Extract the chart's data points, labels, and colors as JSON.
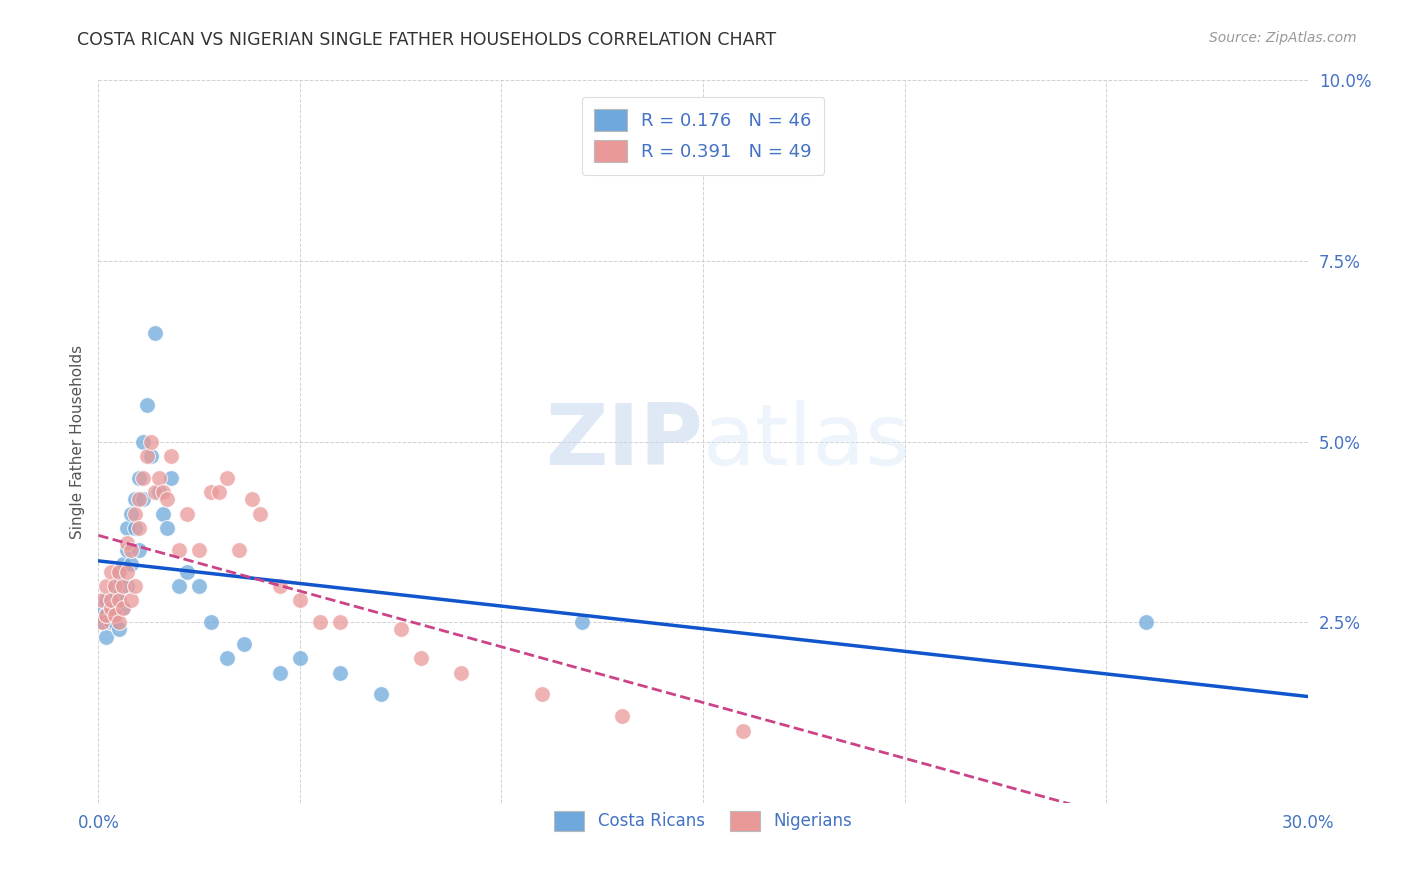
{
  "title": "COSTA RICAN VS NIGERIAN SINGLE FATHER HOUSEHOLDS CORRELATION CHART",
  "source": "Source: ZipAtlas.com",
  "ylabel": "Single Father Households",
  "xlim": [
    0.0,
    0.3
  ],
  "ylim": [
    0.0,
    0.1
  ],
  "xticks": [
    0.0,
    0.05,
    0.1,
    0.15,
    0.2,
    0.25,
    0.3
  ],
  "yticks": [
    0.0,
    0.025,
    0.05,
    0.075,
    0.1
  ],
  "ytick_labels": [
    "",
    "2.5%",
    "5.0%",
    "7.5%",
    "10.0%"
  ],
  "xtick_labels": [
    "0.0%",
    "",
    "",
    "",
    "",
    "",
    "30.0%"
  ],
  "blue_color": "#6fa8dc",
  "pink_color": "#ea9999",
  "trend_blue": "#1155cc",
  "trend_pink": "#cc4488",
  "legend_r_blue": "0.176",
  "legend_n_blue": "46",
  "legend_r_pink": "0.391",
  "legend_n_pink": "49",
  "watermark": "ZIPatlas",
  "costa_rican_x": [
    0.001,
    0.001,
    0.002,
    0.002,
    0.002,
    0.003,
    0.003,
    0.003,
    0.004,
    0.004,
    0.004,
    0.005,
    0.005,
    0.005,
    0.006,
    0.006,
    0.007,
    0.007,
    0.007,
    0.008,
    0.008,
    0.009,
    0.009,
    0.01,
    0.01,
    0.011,
    0.011,
    0.012,
    0.013,
    0.014,
    0.015,
    0.016,
    0.017,
    0.018,
    0.02,
    0.022,
    0.025,
    0.028,
    0.032,
    0.036,
    0.045,
    0.05,
    0.06,
    0.07,
    0.26,
    0.12
  ],
  "costa_rican_y": [
    0.027,
    0.025,
    0.026,
    0.028,
    0.023,
    0.026,
    0.028,
    0.025,
    0.027,
    0.025,
    0.03,
    0.024,
    0.028,
    0.032,
    0.027,
    0.033,
    0.038,
    0.03,
    0.035,
    0.04,
    0.033,
    0.042,
    0.038,
    0.035,
    0.045,
    0.05,
    0.042,
    0.055,
    0.048,
    0.065,
    0.043,
    0.04,
    0.038,
    0.045,
    0.03,
    0.032,
    0.03,
    0.025,
    0.02,
    0.022,
    0.018,
    0.02,
    0.018,
    0.015,
    0.025,
    0.025
  ],
  "nigerian_x": [
    0.001,
    0.001,
    0.002,
    0.002,
    0.003,
    0.003,
    0.003,
    0.004,
    0.004,
    0.005,
    0.005,
    0.005,
    0.006,
    0.006,
    0.007,
    0.007,
    0.008,
    0.008,
    0.009,
    0.009,
    0.01,
    0.01,
    0.011,
    0.012,
    0.013,
    0.014,
    0.015,
    0.016,
    0.017,
    0.018,
    0.02,
    0.022,
    0.025,
    0.028,
    0.03,
    0.032,
    0.035,
    0.038,
    0.04,
    0.045,
    0.05,
    0.055,
    0.06,
    0.075,
    0.08,
    0.09,
    0.11,
    0.13,
    0.16
  ],
  "nigerian_y": [
    0.025,
    0.028,
    0.026,
    0.03,
    0.027,
    0.028,
    0.032,
    0.026,
    0.03,
    0.025,
    0.028,
    0.032,
    0.027,
    0.03,
    0.032,
    0.036,
    0.028,
    0.035,
    0.03,
    0.04,
    0.042,
    0.038,
    0.045,
    0.048,
    0.05,
    0.043,
    0.045,
    0.043,
    0.042,
    0.048,
    0.035,
    0.04,
    0.035,
    0.043,
    0.043,
    0.045,
    0.035,
    0.042,
    0.04,
    0.03,
    0.028,
    0.025,
    0.025,
    0.024,
    0.02,
    0.018,
    0.015,
    0.012,
    0.01
  ],
  "background_color": "#ffffff",
  "plot_bg_color": "#ffffff",
  "grid_color": "#cccccc",
  "title_color": "#333333",
  "tick_label_color": "#4472c4",
  "source_color": "#999999"
}
